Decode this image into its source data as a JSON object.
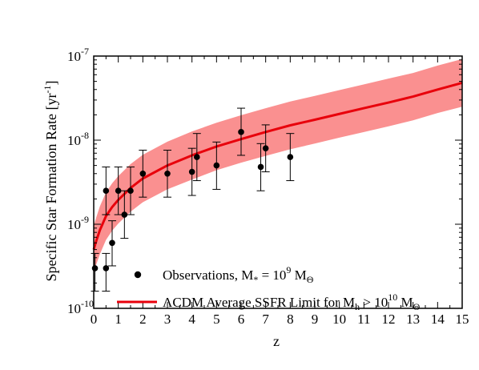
{
  "chart_data": {
    "type": "scatter",
    "xlabel": "z",
    "ylabel": "Specific Star Formation Rate [yr",
    "ylabel_sup": "-1",
    "ylabel_close": "]",
    "xlim": [
      0,
      15
    ],
    "ylim": [
      1e-10,
      1e-07
    ],
    "yscale": "log",
    "x_ticks": [
      "0",
      "1",
      "2",
      "3",
      "4",
      "5",
      "6",
      "7",
      "8",
      "9",
      "10",
      "11",
      "12",
      "13",
      "14",
      "15"
    ],
    "y_ticks": [
      {
        "value": 1e-10,
        "base": "10",
        "exp": "-10"
      },
      {
        "value": 1e-09,
        "base": "10",
        "exp": "-9"
      },
      {
        "value": 1e-08,
        "base": "10",
        "exp": "-8"
      },
      {
        "value": 1e-07,
        "base": "10",
        "exp": "-7"
      }
    ],
    "colors": {
      "line": "#e8000b",
      "band": "#fa9090",
      "points": "#000000"
    },
    "series": [
      {
        "name": "Observations",
        "kind": "points_with_errorbars",
        "points": [
          {
            "x": 0.05,
            "y": 3e-10,
            "lo": 1.6e-10,
            "hi": 4.5e-10
          },
          {
            "x": 0.5,
            "y": 2.5e-09,
            "lo": 1.3e-09,
            "hi": 4.8e-09
          },
          {
            "x": 0.5,
            "y": 3e-10,
            "lo": 1.6e-10,
            "hi": 4.5e-10
          },
          {
            "x": 0.75,
            "y": 6e-10,
            "lo": 3.2e-10,
            "hi": 1.1e-09
          },
          {
            "x": 1.0,
            "y": 2.5e-09,
            "lo": 1.3e-09,
            "hi": 4.8e-09
          },
          {
            "x": 1.25,
            "y": 1.3e-09,
            "lo": 6.8e-10,
            "hi": 2.5e-09
          },
          {
            "x": 1.5,
            "y": 2.5e-09,
            "lo": 1.3e-09,
            "hi": 4.8e-09
          },
          {
            "x": 2.0,
            "y": 4e-09,
            "lo": 2.1e-09,
            "hi": 7.6e-09
          },
          {
            "x": 3.0,
            "y": 4e-09,
            "lo": 2.1e-09,
            "hi": 7.6e-09
          },
          {
            "x": 4.0,
            "y": 4.2e-09,
            "lo": 2.2e-09,
            "hi": 8e-09
          },
          {
            "x": 4.2,
            "y": 6.3e-09,
            "lo": 3.3e-09,
            "hi": 1.2e-08
          },
          {
            "x": 5.0,
            "y": 5e-09,
            "lo": 2.6e-09,
            "hi": 9.5e-09
          },
          {
            "x": 6.0,
            "y": 1.25e-08,
            "lo": 6.6e-09,
            "hi": 2.4e-08
          },
          {
            "x": 6.8,
            "y": 4.8e-09,
            "lo": 2.5e-09,
            "hi": 9.1e-09
          },
          {
            "x": 7.0,
            "y": 8e-09,
            "lo": 4.2e-09,
            "hi": 1.52e-08
          },
          {
            "x": 8.0,
            "y": 6.3e-09,
            "lo": 3.3e-09,
            "hi": 1.2e-08
          }
        ]
      },
      {
        "name": "ΛCDM Average SSFR Limit",
        "kind": "curve_with_band",
        "x": [
          0.0,
          0.1,
          0.25,
          0.5,
          0.75,
          1.0,
          1.5,
          2.0,
          3.0,
          4.0,
          5.0,
          6.0,
          7.0,
          8.0,
          9.0,
          10.0,
          11.0,
          12.0,
          13.0,
          14.0,
          15.0
        ],
        "y": [
          5e-10,
          6.3e-10,
          8.5e-10,
          1.25e-09,
          1.6e-09,
          1.95e-09,
          2.7e-09,
          3.5e-09,
          5e-09,
          6.6e-09,
          8.4e-09,
          1.03e-08,
          1.25e-08,
          1.5e-08,
          1.75e-08,
          2.05e-08,
          2.4e-08,
          2.8e-08,
          3.3e-08,
          4e-08,
          4.8e-08
        ],
        "y_lo": [
          2.6e-10,
          3.3e-10,
          4.4e-10,
          6.5e-10,
          8.4e-10,
          1.02e-09,
          1.41e-09,
          1.83e-09,
          2.6e-09,
          3.4e-09,
          4.4e-09,
          5.4e-09,
          6.5e-09,
          7.8e-09,
          9.1e-09,
          1.07e-08,
          1.25e-08,
          1.46e-08,
          1.72e-08,
          2.1e-08,
          2.5e-08
        ],
        "y_hi": [
          9.6e-10,
          1.2e-09,
          1.63e-09,
          2.4e-09,
          3.07e-09,
          3.74e-09,
          5.2e-09,
          6.7e-09,
          9.6e-09,
          1.27e-08,
          1.61e-08,
          1.98e-08,
          2.4e-08,
          2.88e-08,
          3.36e-08,
          3.94e-08,
          4.6e-08,
          5.4e-08,
          6.3e-08,
          7.7e-08,
          9.2e-08
        ]
      }
    ],
    "legend": {
      "placement": "bottom-left",
      "entries": [
        {
          "text": "Observations, M",
          "sub": "*",
          "mid": " = 10",
          "sup": "9",
          "tail": " M",
          "tail_sub": "Θ"
        },
        {
          "text": "ΛCDM Average SSFR Limit for M",
          "sub": "h",
          "mid": " > 10",
          "sup": "10",
          "tail": " M",
          "tail_sub": "Θ"
        }
      ]
    }
  }
}
